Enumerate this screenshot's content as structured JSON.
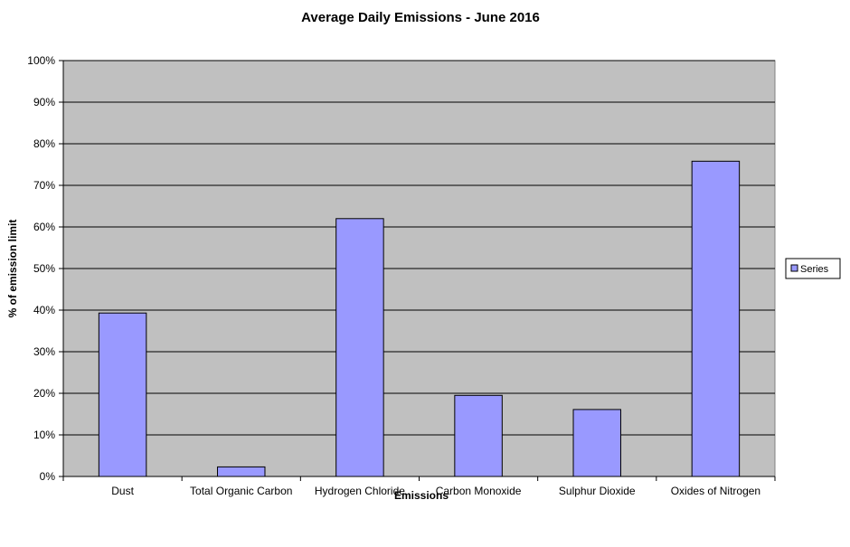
{
  "chart_data": {
    "type": "bar",
    "title": "Average Daily Emissions - June 2016",
    "xlabel": "Emissions",
    "ylabel": "% of emission limit",
    "categories": [
      "Dust",
      "Total Organic Carbon",
      "Hydrogen Chloride",
      "Carbon Monoxide",
      "Sulphur Dioxide",
      "Oxides of Nitrogen"
    ],
    "series": [
      {
        "name": "Series",
        "values": [
          39.3,
          2.3,
          62,
          19.5,
          16.1,
          75.8
        ]
      }
    ],
    "ylim": [
      0,
      100
    ],
    "yticks": [
      0,
      10,
      20,
      30,
      40,
      50,
      60,
      70,
      80,
      90,
      100
    ],
    "ytick_labels": [
      "0%",
      "10%",
      "20%",
      "30%",
      "40%",
      "50%",
      "60%",
      "70%",
      "80%",
      "90%",
      "100%"
    ],
    "grid": true,
    "legend_position": "right",
    "colors": {
      "plot_background": "#c0c0c0",
      "bar_fill": "#9999ff",
      "bar_stroke": "#000000",
      "gridline": "#000000"
    }
  }
}
